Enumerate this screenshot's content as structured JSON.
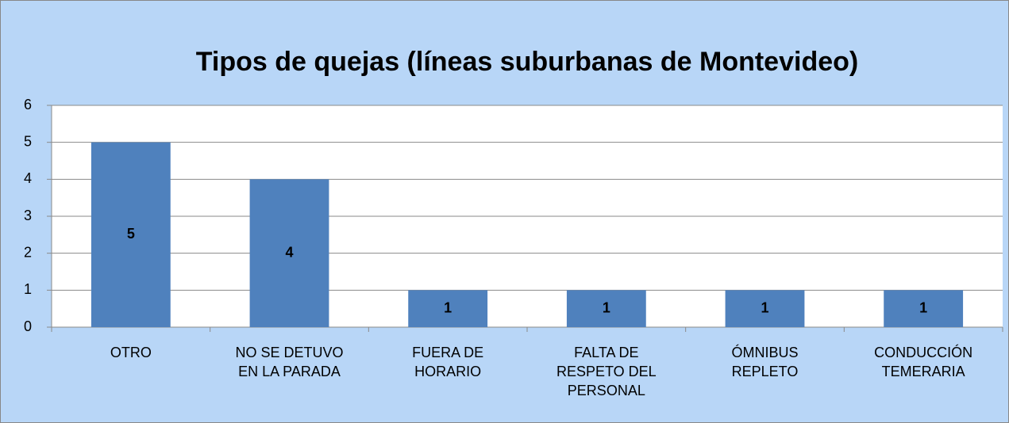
{
  "chart_data": {
    "type": "bar",
    "title": "Tipos de quejas (líneas  suburbanas de Montevideo)",
    "categories": [
      "OTRO",
      "NO SE DETUVO EN LA PARADA",
      "FUERA DE HORARIO",
      "FALTA DE RESPETO DEL PERSONAL",
      "ÓMNIBUS REPLETO",
      "CONDUCCIÓN TEMERARIA"
    ],
    "values": [
      5,
      4,
      1,
      1,
      1,
      1
    ],
    "color": "#4f81bd",
    "ylim": [
      0,
      6
    ],
    "yticks": [
      0,
      1,
      2,
      3,
      4,
      5,
      6
    ],
    "grid": true
  }
}
